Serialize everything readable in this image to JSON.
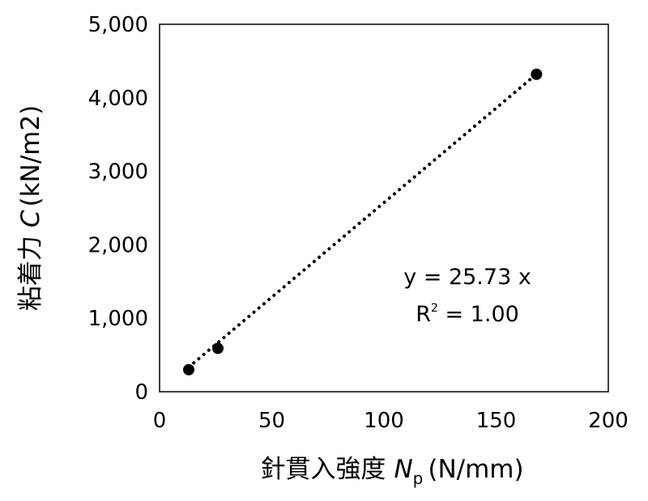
{
  "chart_data": {
    "type": "scatter",
    "title": "",
    "xlabel": "針貫入強度",
    "xlabel_symbol": "N",
    "xlabel_subscript": "p",
    "xlabel_unit": "(N/mm)",
    "ylabel": "粘着力",
    "ylabel_symbol": "C",
    "ylabel_unit": "(kN/m2)",
    "xlim": [
      0,
      200
    ],
    "ylim": [
      0,
      5000
    ],
    "x_ticks": [
      0,
      50,
      100,
      150,
      200
    ],
    "y_ticks": [
      0,
      1000,
      2000,
      3000,
      4000,
      5000
    ],
    "x_tick_labels": [
      "0",
      "50",
      "100",
      "150",
      "200"
    ],
    "y_tick_labels": [
      "0",
      "1,000",
      "2,000",
      "3,000",
      "4,000",
      "5,000"
    ],
    "grid": false,
    "series": [
      {
        "points": [
          {
            "x": 13,
            "y": 300
          },
          {
            "x": 26,
            "y": 590
          },
          {
            "x": 168,
            "y": 4320
          }
        ],
        "marker_color": "#000000"
      }
    ],
    "trendline": {
      "style": "dotted",
      "slope": 25.73,
      "x_range": [
        13,
        168
      ],
      "color": "#000000"
    },
    "annotations": {
      "equation": "y = 25.73 x",
      "r_squared_prefix": "R",
      "r_squared_sup": "2",
      "r_squared_value": " = 1.00"
    }
  }
}
